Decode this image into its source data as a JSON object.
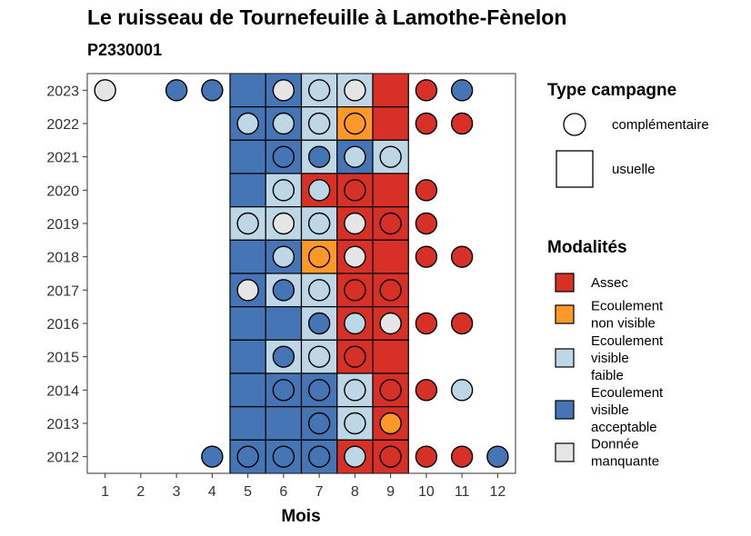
{
  "header": {
    "title": "Le ruisseau de Tournefeuille à Lamothe-Fènelon",
    "subtitle": "P2330001"
  },
  "colors": {
    "assec": "#D73027",
    "ecoulement_non_visible": "#FE9929",
    "ecoulement_visible_faible": "#BDD7E7",
    "ecoulement_visible_acceptable": "#4575B4",
    "donnee_manquante": "#E5E5E5"
  },
  "legend": {
    "type_title": "Type campagne",
    "type_items": [
      {
        "shape": "circle",
        "label": "complémentaire"
      },
      {
        "shape": "square",
        "label": "usuelle"
      }
    ],
    "mod_title": "Modalités",
    "mod_items": [
      {
        "key": "A",
        "color": "#D73027",
        "lines": [
          "Assec"
        ]
      },
      {
        "key": "N",
        "color": "#FE9929",
        "lines": [
          "Ecoulement",
          "non visible"
        ]
      },
      {
        "key": "F",
        "color": "#BDD7E7",
        "lines": [
          "Ecoulement",
          "visible",
          "faible"
        ]
      },
      {
        "key": "V",
        "color": "#4575B4",
        "lines": [
          "Ecoulement",
          "visible",
          "acceptable"
        ]
      },
      {
        "key": "M",
        "color": "#E5E5E5",
        "lines": [
          "Donnée",
          "manquante"
        ]
      }
    ]
  },
  "chart_data": {
    "type": "heatmap",
    "xlabel": "Mois",
    "ylabel": "",
    "x_ticks": [
      1,
      2,
      3,
      4,
      5,
      6,
      7,
      8,
      9,
      10,
      11,
      12
    ],
    "y_ticks": [
      2012,
      2013,
      2014,
      2015,
      2016,
      2017,
      2018,
      2019,
      2020,
      2021,
      2022,
      2023
    ],
    "xlim": [
      0.5,
      12.5
    ],
    "ylim": [
      2011.5,
      2023.5
    ],
    "modality_codes": {
      "A": "Assec",
      "N": "Ecoulement non visible",
      "F": "Ecoulement visible faible",
      "V": "Ecoulement visible acceptable",
      "M": "Donnée manquante"
    },
    "usuelle": [
      {
        "year": 2023,
        "months": {
          "5": "V",
          "6": "V",
          "7": "F",
          "8": "F",
          "9": "A"
        }
      },
      {
        "year": 2022,
        "months": {
          "5": "V",
          "6": "V",
          "7": "F",
          "8": "N",
          "9": "A"
        }
      },
      {
        "year": 2021,
        "months": {
          "5": "V",
          "6": "V",
          "7": "F",
          "8": "V",
          "9": "F"
        }
      },
      {
        "year": 2020,
        "months": {
          "5": "V",
          "6": "F",
          "7": "A",
          "8": "A",
          "9": "A"
        }
      },
      {
        "year": 2019,
        "months": {
          "5": "F",
          "6": "F",
          "7": "F",
          "8": "A",
          "9": "A"
        }
      },
      {
        "year": 2018,
        "months": {
          "5": "V",
          "6": "V",
          "7": "N",
          "8": "A",
          "9": "A"
        }
      },
      {
        "year": 2017,
        "months": {
          "5": "V",
          "6": "F",
          "7": "F",
          "8": "A",
          "9": "A"
        }
      },
      {
        "year": 2016,
        "months": {
          "5": "V",
          "6": "V",
          "7": "F",
          "8": "A",
          "9": "A"
        }
      },
      {
        "year": 2015,
        "months": {
          "5": "V",
          "6": "F",
          "7": "F",
          "8": "A",
          "9": "A"
        }
      },
      {
        "year": 2014,
        "months": {
          "5": "V",
          "6": "V",
          "7": "V",
          "8": "F",
          "9": "A"
        }
      },
      {
        "year": 2013,
        "months": {
          "5": "V",
          "6": "V",
          "7": "V",
          "8": "F",
          "9": "A"
        }
      },
      {
        "year": 2012,
        "months": {
          "5": "V",
          "6": "V",
          "7": "V",
          "8": "A",
          "9": "A"
        }
      }
    ],
    "complementaire": [
      {
        "year": 2023,
        "months": {
          "1": "M",
          "3": "V",
          "4": "V",
          "6": "M",
          "7": "F",
          "8": "M",
          "10": "A",
          "11": "V"
        }
      },
      {
        "year": 2022,
        "months": {
          "5": "F",
          "6": "F",
          "7": "F",
          "8": "N",
          "10": "A",
          "11": "A"
        }
      },
      {
        "year": 2021,
        "months": {
          "6": "V",
          "7": "V",
          "8": "F",
          "9": "F"
        }
      },
      {
        "year": 2020,
        "months": {
          "6": "F",
          "7": "F",
          "8": "A",
          "10": "A"
        }
      },
      {
        "year": 2019,
        "months": {
          "5": "F",
          "6": "M",
          "7": "F",
          "8": "M",
          "9": "A",
          "10": "A"
        }
      },
      {
        "year": 2018,
        "months": {
          "6": "F",
          "7": "N",
          "8": "M",
          "10": "A",
          "11": "A"
        }
      },
      {
        "year": 2017,
        "months": {
          "5": "M",
          "6": "V",
          "7": "F",
          "8": "A",
          "9": "A"
        }
      },
      {
        "year": 2016,
        "months": {
          "7": "V",
          "8": "F",
          "9": "M",
          "10": "A",
          "11": "A"
        }
      },
      {
        "year": 2015,
        "months": {
          "6": "V",
          "7": "F",
          "8": "A"
        }
      },
      {
        "year": 2014,
        "months": {
          "6": "V",
          "7": "V",
          "8": "F",
          "9": "A",
          "10": "A",
          "11": "F"
        }
      },
      {
        "year": 2013,
        "months": {
          "7": "V",
          "8": "F",
          "9": "N"
        }
      },
      {
        "year": 2012,
        "months": {
          "4": "V",
          "5": "V",
          "6": "V",
          "7": "V",
          "8": "F",
          "9": "A",
          "10": "A",
          "11": "A",
          "12": "V"
        }
      }
    ]
  }
}
